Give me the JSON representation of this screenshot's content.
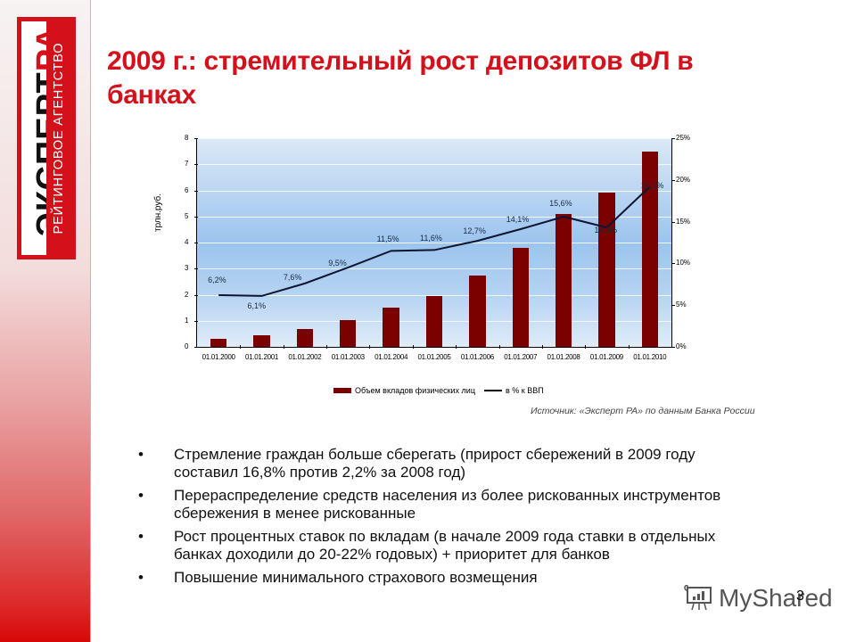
{
  "sidebar": {
    "logo_main_dark": "ЭКСПЕРТ",
    "logo_main_red": "РА",
    "logo_sub": "РЕЙТИНГОВОЕ АГЕНТСТВО",
    "colors": {
      "brand_red": "#d4101b"
    }
  },
  "title": "2009 г.: стремительный  рост депозитов ФЛ в банках",
  "chart": {
    "y_left_title": "трлн.руб.",
    "y_left_ticks": [
      "0",
      "1",
      "2",
      "3",
      "4",
      "5",
      "6",
      "7",
      "8"
    ],
    "y_right_ticks": [
      "0%",
      "5%",
      "10%",
      "15%",
      "20%",
      "25%"
    ],
    "x_labels": [
      "01.01.2000",
      "01.01.2001",
      "01.01.2002",
      "01.01.2003",
      "01.01.2004",
      "01.01.2005",
      "01.01.2006",
      "01.01.2007",
      "01.01.2008",
      "01.01.2009",
      "01.01.2010"
    ],
    "pct_labels": [
      "6,2%",
      "6,1%",
      "7,6%",
      "9,5%",
      "11,5%",
      "11,6%",
      "12,7%",
      "14,1%",
      "15,6%",
      "14,3%",
      "19,2%"
    ],
    "legend": {
      "bar": "Объем вкладов физических лиц",
      "line": "в % к ВВП"
    }
  },
  "chart_data": {
    "type": "bar",
    "title": "",
    "xlabel": "",
    "ylabel": "трлн.руб.",
    "ylabel_right": "",
    "categories": [
      "01.01.2000",
      "01.01.2001",
      "01.01.2002",
      "01.01.2003",
      "01.01.2004",
      "01.01.2005",
      "01.01.2006",
      "01.01.2007",
      "01.01.2008",
      "01.01.2009",
      "01.01.2010"
    ],
    "series": [
      {
        "name": "Объем вкладов физических лиц",
        "type": "bar",
        "axis": "left",
        "color": "#7b0000",
        "values": [
          0.32,
          0.45,
          0.7,
          1.03,
          1.5,
          1.95,
          2.75,
          3.8,
          5.1,
          5.9,
          7.48
        ]
      },
      {
        "name": "в % к ВВП",
        "type": "line",
        "axis": "right",
        "color": "#000000",
        "values": [
          6.2,
          6.1,
          7.6,
          9.5,
          11.5,
          11.6,
          12.7,
          14.1,
          15.6,
          14.3,
          19.2
        ],
        "labels": [
          "6,2%",
          "6,1%",
          "7,6%",
          "9,5%",
          "11,5%",
          "11,6%",
          "12,7%",
          "14,1%",
          "15,6%",
          "14,3%",
          "19,2%"
        ]
      }
    ],
    "ylim": [
      0,
      8
    ],
    "ylim_right": [
      0,
      25
    ],
    "yticks": [
      0,
      1,
      2,
      3,
      4,
      5,
      6,
      7,
      8
    ],
    "yticks_right": [
      "0%",
      "5%",
      "10%",
      "15%",
      "20%",
      "25%"
    ],
    "grid": true,
    "legend_position": "bottom"
  },
  "source": "Источник: «Эксперт РА» по данным Банка России",
  "bullets": [
    "Стремление граждан больше сберегать (прирост сбережений в 2009 году составил 16,8% против 2,2% за 2008 год)",
    "Перераспределение средств населения из более рискованных инструментов сбережения в менее рискованные",
    "Рост процентных ставок по вкладам (в начале 2009 года ставки в отдельных банках доходили до 20-22% годовых) + приоритет для банков",
    "Повышение минимального страхового возмещения"
  ],
  "bullet_glyph": "•",
  "watermark": "MyShared",
  "page_number": "3"
}
